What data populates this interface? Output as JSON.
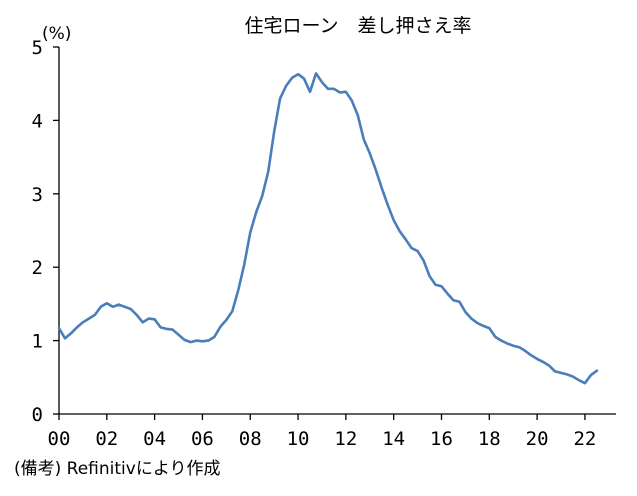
{
  "chart_data": {
    "type": "line",
    "title": "住宅ローン　差し押さえ率",
    "unit_label": "(%)",
    "source_note": "(備考) Refinitivにより作成",
    "xlabel": "",
    "ylabel": "",
    "xlim": [
      2000,
      2023.3
    ],
    "ylim": [
      0,
      5
    ],
    "x_ticks": [
      {
        "value": 2000,
        "label": "00"
      },
      {
        "value": 2002,
        "label": "02"
      },
      {
        "value": 2004,
        "label": "04"
      },
      {
        "value": 2006,
        "label": "06"
      },
      {
        "value": 2008,
        "label": "08"
      },
      {
        "value": 2010,
        "label": "10"
      },
      {
        "value": 2012,
        "label": "12"
      },
      {
        "value": 2014,
        "label": "14"
      },
      {
        "value": 2016,
        "label": "16"
      },
      {
        "value": 2018,
        "label": "18"
      },
      {
        "value": 2020,
        "label": "20"
      },
      {
        "value": 2022,
        "label": "22"
      }
    ],
    "y_ticks": [
      {
        "value": 0,
        "label": "0"
      },
      {
        "value": 1,
        "label": "1"
      },
      {
        "value": 2,
        "label": "2"
      },
      {
        "value": 3,
        "label": "3"
      },
      {
        "value": 4,
        "label": "4"
      },
      {
        "value": 5,
        "label": "5"
      }
    ],
    "grid": false,
    "line_color": "#4a7ebb",
    "series": [
      {
        "points": [
          [
            2000.0,
            1.17
          ],
          [
            2000.25,
            1.03
          ],
          [
            2000.5,
            1.1
          ],
          [
            2000.75,
            1.18
          ],
          [
            2001.0,
            1.25
          ],
          [
            2001.25,
            1.3
          ],
          [
            2001.5,
            1.35
          ],
          [
            2001.75,
            1.46
          ],
          [
            2002.0,
            1.51
          ],
          [
            2002.25,
            1.46
          ],
          [
            2002.5,
            1.49
          ],
          [
            2002.75,
            1.46
          ],
          [
            2003.0,
            1.43
          ],
          [
            2003.25,
            1.35
          ],
          [
            2003.5,
            1.25
          ],
          [
            2003.75,
            1.3
          ],
          [
            2004.0,
            1.29
          ],
          [
            2004.25,
            1.18
          ],
          [
            2004.5,
            1.16
          ],
          [
            2004.75,
            1.15
          ],
          [
            2005.0,
            1.08
          ],
          [
            2005.25,
            1.01
          ],
          [
            2005.5,
            0.98
          ],
          [
            2005.75,
            1.0
          ],
          [
            2006.0,
            0.99
          ],
          [
            2006.25,
            1.0
          ],
          [
            2006.5,
            1.05
          ],
          [
            2006.75,
            1.19
          ],
          [
            2007.0,
            1.28
          ],
          [
            2007.25,
            1.4
          ],
          [
            2007.5,
            1.69
          ],
          [
            2007.75,
            2.04
          ],
          [
            2008.0,
            2.47
          ],
          [
            2008.25,
            2.75
          ],
          [
            2008.5,
            2.97
          ],
          [
            2008.75,
            3.3
          ],
          [
            2009.0,
            3.85
          ],
          [
            2009.25,
            4.3
          ],
          [
            2009.5,
            4.47
          ],
          [
            2009.75,
            4.58
          ],
          [
            2010.0,
            4.63
          ],
          [
            2010.25,
            4.57
          ],
          [
            2010.5,
            4.39
          ],
          [
            2010.75,
            4.64
          ],
          [
            2011.0,
            4.52
          ],
          [
            2011.25,
            4.43
          ],
          [
            2011.5,
            4.43
          ],
          [
            2011.75,
            4.38
          ],
          [
            2012.0,
            4.39
          ],
          [
            2012.25,
            4.27
          ],
          [
            2012.5,
            4.07
          ],
          [
            2012.75,
            3.74
          ],
          [
            2013.0,
            3.55
          ],
          [
            2013.25,
            3.33
          ],
          [
            2013.5,
            3.08
          ],
          [
            2013.75,
            2.85
          ],
          [
            2014.0,
            2.64
          ],
          [
            2014.25,
            2.49
          ],
          [
            2014.5,
            2.38
          ],
          [
            2014.75,
            2.26
          ],
          [
            2015.0,
            2.22
          ],
          [
            2015.25,
            2.09
          ],
          [
            2015.5,
            1.88
          ],
          [
            2015.75,
            1.76
          ],
          [
            2016.0,
            1.74
          ],
          [
            2016.25,
            1.64
          ],
          [
            2016.5,
            1.55
          ],
          [
            2016.75,
            1.53
          ],
          [
            2017.0,
            1.39
          ],
          [
            2017.25,
            1.3
          ],
          [
            2017.5,
            1.24
          ],
          [
            2017.75,
            1.2
          ],
          [
            2018.0,
            1.17
          ],
          [
            2018.25,
            1.05
          ],
          [
            2018.5,
            1.0
          ],
          [
            2018.75,
            0.96
          ],
          [
            2019.0,
            0.93
          ],
          [
            2019.25,
            0.91
          ],
          [
            2019.5,
            0.86
          ],
          [
            2019.75,
            0.8
          ],
          [
            2020.0,
            0.75
          ],
          [
            2020.25,
            0.71
          ],
          [
            2020.5,
            0.66
          ],
          [
            2020.75,
            0.58
          ],
          [
            2021.0,
            0.56
          ],
          [
            2021.25,
            0.54
          ],
          [
            2021.5,
            0.51
          ],
          [
            2021.75,
            0.46
          ],
          [
            2022.0,
            0.42
          ],
          [
            2022.25,
            0.53
          ],
          [
            2022.5,
            0.59
          ]
        ]
      }
    ]
  }
}
